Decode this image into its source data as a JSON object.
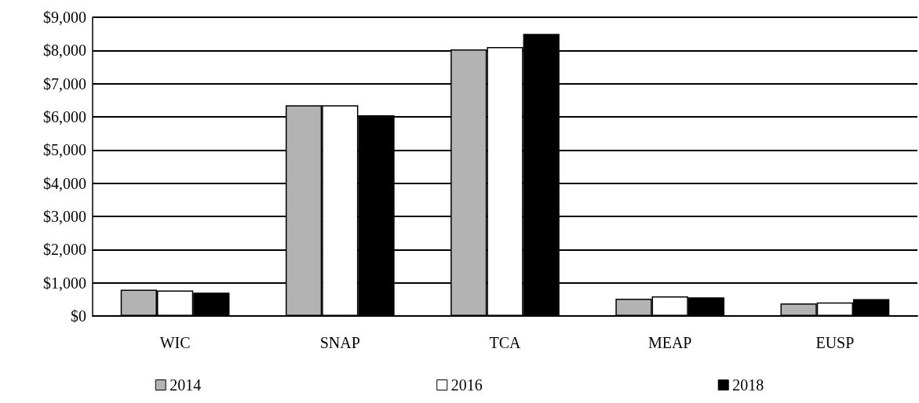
{
  "chart_data": {
    "type": "bar",
    "categories": [
      "WIC",
      "SNAP",
      "TCA",
      "MEAP",
      "EUSP"
    ],
    "series": [
      {
        "name": "2014",
        "color": "#b3b3b3",
        "values": [
          790,
          6350,
          8030,
          520,
          380
        ]
      },
      {
        "name": "2016",
        "color": "#ffffff",
        "values": [
          770,
          6350,
          8100,
          590,
          410
        ]
      },
      {
        "name": "2018",
        "color": "#000000",
        "values": [
          700,
          6050,
          8500,
          560,
          510
        ]
      }
    ],
    "ylim": [
      0,
      9000
    ],
    "yticks": [
      {
        "value": 0,
        "label": "$0"
      },
      {
        "value": 1000,
        "label": "$1,000"
      },
      {
        "value": 2000,
        "label": "$2,000"
      },
      {
        "value": 3000,
        "label": "$3,000"
      },
      {
        "value": 4000,
        "label": "$4,000"
      },
      {
        "value": 5000,
        "label": "$5,000"
      },
      {
        "value": 6000,
        "label": "$6,000"
      },
      {
        "value": 7000,
        "label": "$7,000"
      },
      {
        "value": 8000,
        "label": "$8,000"
      },
      {
        "value": 9000,
        "label": "$9,000"
      }
    ],
    "grid": "y",
    "legend": "bottom"
  }
}
